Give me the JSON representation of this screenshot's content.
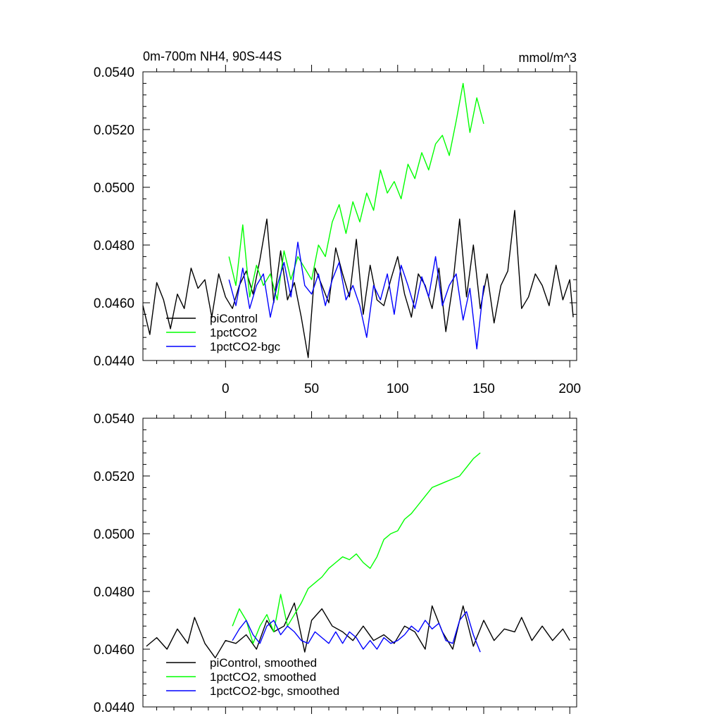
{
  "chart_data": [
    {
      "type": "line",
      "title": "0m-700m NH4, 90S-44S",
      "units": "mmol/m^3",
      "xlabel": "",
      "ylabel": "",
      "xlim": [
        -48,
        204
      ],
      "ylim": [
        0.044,
        0.054
      ],
      "xticks": [
        {
          "value": 0,
          "label": "0"
        },
        {
          "value": 50,
          "label": "50"
        },
        {
          "value": 100,
          "label": "100"
        },
        {
          "value": 150,
          "label": "150"
        },
        {
          "value": 200,
          "label": "200"
        }
      ],
      "yticks": [
        {
          "value": 0.044,
          "label": "0.0440"
        },
        {
          "value": 0.046,
          "label": "0.0460"
        },
        {
          "value": 0.048,
          "label": "0.0480"
        },
        {
          "value": 0.05,
          "label": "0.0500"
        },
        {
          "value": 0.052,
          "label": "0.0520"
        },
        {
          "value": 0.054,
          "label": "0.0540"
        }
      ],
      "legend_position": "bottom-left",
      "series": [
        {
          "name": "piControl",
          "color": "#000000",
          "x": [
            -48,
            -44,
            -40,
            -36,
            -32,
            -28,
            -24,
            -20,
            -16,
            -12,
            -8,
            -4,
            0,
            4,
            8,
            12,
            16,
            20,
            24,
            28,
            32,
            36,
            40,
            44,
            48,
            52,
            56,
            60,
            64,
            68,
            72,
            76,
            80,
            84,
            88,
            92,
            96,
            100,
            104,
            108,
            112,
            116,
            120,
            124,
            128,
            132,
            136,
            140,
            144,
            148,
            152,
            156,
            160,
            164,
            168,
            172,
            176,
            180,
            184,
            188,
            192,
            196,
            200,
            202
          ],
          "y": [
            0.0459,
            0.0449,
            0.0467,
            0.0461,
            0.0451,
            0.0463,
            0.0458,
            0.0472,
            0.0465,
            0.0468,
            0.0455,
            0.047,
            0.0462,
            0.0458,
            0.0466,
            0.0471,
            0.0463,
            0.0475,
            0.0489,
            0.046,
            0.0478,
            0.0461,
            0.0467,
            0.0455,
            0.0441,
            0.0472,
            0.0466,
            0.046,
            0.0479,
            0.047,
            0.0462,
            0.0482,
            0.0456,
            0.0473,
            0.0461,
            0.0459,
            0.0468,
            0.0476,
            0.0463,
            0.0455,
            0.047,
            0.0466,
            0.0458,
            0.0472,
            0.045,
            0.0466,
            0.0489,
            0.0462,
            0.048,
            0.0458,
            0.047,
            0.0453,
            0.0466,
            0.0471,
            0.0492,
            0.0458,
            0.0462,
            0.047,
            0.0466,
            0.0459,
            0.0473,
            0.0461,
            0.0468,
            0.0455
          ]
        },
        {
          "name": "1pctCO2",
          "color": "#00ff00",
          "x": [
            2,
            6,
            10,
            14,
            18,
            22,
            26,
            30,
            34,
            38,
            42,
            46,
            50,
            54,
            58,
            62,
            66,
            70,
            74,
            78,
            82,
            86,
            90,
            94,
            98,
            102,
            106,
            110,
            114,
            118,
            122,
            126,
            130,
            134,
            138,
            142,
            146,
            150
          ],
          "y": [
            0.0476,
            0.0466,
            0.0487,
            0.0462,
            0.0473,
            0.0466,
            0.047,
            0.0461,
            0.0478,
            0.0468,
            0.0476,
            0.0472,
            0.0468,
            0.048,
            0.0476,
            0.0488,
            0.0494,
            0.0484,
            0.0495,
            0.0488,
            0.0498,
            0.0492,
            0.0506,
            0.0498,
            0.0502,
            0.0496,
            0.0508,
            0.0503,
            0.0512,
            0.0506,
            0.0515,
            0.0518,
            0.0511,
            0.0523,
            0.0536,
            0.0519,
            0.0531,
            0.0522
          ]
        },
        {
          "name": "1pctCO2-bgc",
          "color": "#0000ff",
          "x": [
            2,
            6,
            10,
            14,
            18,
            22,
            26,
            30,
            34,
            38,
            42,
            46,
            50,
            54,
            58,
            62,
            66,
            70,
            74,
            78,
            82,
            86,
            90,
            94,
            98,
            102,
            106,
            110,
            114,
            118,
            122,
            126,
            130,
            134,
            138,
            142,
            146,
            150
          ],
          "y": [
            0.0468,
            0.0459,
            0.0472,
            0.0458,
            0.0466,
            0.047,
            0.0455,
            0.0466,
            0.0474,
            0.0462,
            0.0481,
            0.0466,
            0.0463,
            0.047,
            0.0459,
            0.0468,
            0.0474,
            0.0461,
            0.0466,
            0.0459,
            0.0448,
            0.0466,
            0.0461,
            0.047,
            0.0456,
            0.0473,
            0.0466,
            0.0458,
            0.0469,
            0.0462,
            0.0476,
            0.0459,
            0.0466,
            0.047,
            0.0454,
            0.0465,
            0.0444,
            0.0466
          ]
        }
      ]
    },
    {
      "type": "line",
      "title": "",
      "xlabel": "",
      "ylabel": "",
      "xlim": [
        -48,
        204
      ],
      "ylim": [
        0.044,
        0.054
      ],
      "xticks": [
        {
          "value": 0,
          "label": ""
        },
        {
          "value": 50,
          "label": ""
        },
        {
          "value": 100,
          "label": ""
        },
        {
          "value": 150,
          "label": ""
        },
        {
          "value": 200,
          "label": ""
        }
      ],
      "yticks": [
        {
          "value": 0.044,
          "label": "0.0440"
        },
        {
          "value": 0.046,
          "label": "0.0460"
        },
        {
          "value": 0.048,
          "label": "0.0480"
        },
        {
          "value": 0.05,
          "label": "0.0500"
        },
        {
          "value": 0.052,
          "label": "0.0520"
        },
        {
          "value": 0.054,
          "label": "0.0540"
        }
      ],
      "legend_position": "bottom-left",
      "series": [
        {
          "name": "piControl, smoothed",
          "color": "#000000",
          "x": [
            -46,
            -40,
            -34,
            -28,
            -22,
            -18,
            -12,
            -6,
            0,
            6,
            12,
            18,
            24,
            28,
            34,
            40,
            46,
            50,
            56,
            62,
            68,
            74,
            80,
            86,
            92,
            98,
            104,
            110,
            116,
            120,
            126,
            132,
            138,
            144,
            150,
            156,
            162,
            168,
            172,
            178,
            184,
            190,
            196,
            200
          ],
          "y": [
            0.0461,
            0.0464,
            0.046,
            0.0467,
            0.0462,
            0.0471,
            0.0462,
            0.0457,
            0.0463,
            0.0462,
            0.0465,
            0.046,
            0.047,
            0.0466,
            0.0468,
            0.0476,
            0.0459,
            0.047,
            0.0474,
            0.0468,
            0.0466,
            0.0463,
            0.0468,
            0.0463,
            0.0465,
            0.0462,
            0.0468,
            0.0466,
            0.046,
            0.0475,
            0.0466,
            0.046,
            0.0475,
            0.0461,
            0.047,
            0.0463,
            0.0467,
            0.0466,
            0.0471,
            0.0463,
            0.0468,
            0.0463,
            0.0467,
            0.0463
          ]
        },
        {
          "name": "1pctCO2, smoothed",
          "color": "#00ff00",
          "x": [
            4,
            8,
            12,
            16,
            20,
            24,
            28,
            32,
            36,
            40,
            44,
            48,
            52,
            56,
            60,
            64,
            68,
            72,
            76,
            80,
            84,
            88,
            92,
            96,
            100,
            104,
            108,
            112,
            116,
            120,
            124,
            128,
            132,
            136,
            140,
            144,
            148
          ],
          "y": [
            0.0468,
            0.0474,
            0.047,
            0.0462,
            0.0468,
            0.0472,
            0.0466,
            0.0479,
            0.0468,
            0.0472,
            0.0476,
            0.0481,
            0.0483,
            0.0485,
            0.0488,
            0.049,
            0.0492,
            0.0491,
            0.0493,
            0.049,
            0.0488,
            0.0492,
            0.0498,
            0.05,
            0.0501,
            0.0505,
            0.0507,
            0.051,
            0.0513,
            0.0516,
            0.0517,
            0.0518,
            0.0519,
            0.052,
            0.0523,
            0.0526,
            0.0528
          ]
        },
        {
          "name": "1pctCO2-bgc, smoothed",
          "color": "#0000ff",
          "x": [
            4,
            8,
            12,
            16,
            20,
            24,
            28,
            32,
            36,
            40,
            44,
            48,
            52,
            56,
            60,
            64,
            68,
            72,
            76,
            80,
            84,
            88,
            92,
            96,
            100,
            104,
            108,
            112,
            116,
            120,
            124,
            128,
            132,
            136,
            140,
            144,
            148
          ],
          "y": [
            0.0463,
            0.0467,
            0.047,
            0.0465,
            0.0462,
            0.0468,
            0.047,
            0.0465,
            0.0468,
            0.0466,
            0.0463,
            0.0462,
            0.0466,
            0.0464,
            0.0462,
            0.0466,
            0.0462,
            0.0466,
            0.0464,
            0.046,
            0.0463,
            0.046,
            0.0464,
            0.0462,
            0.0463,
            0.0465,
            0.0468,
            0.0466,
            0.047,
            0.0467,
            0.0469,
            0.0463,
            0.0462,
            0.047,
            0.0473,
            0.0465,
            0.0459
          ]
        }
      ]
    }
  ]
}
